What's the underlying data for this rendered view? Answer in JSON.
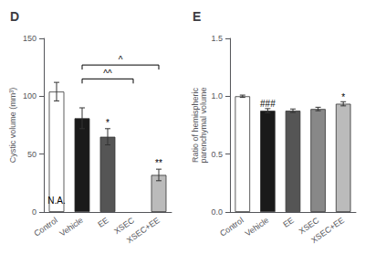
{
  "chart_data": [
    {
      "type": "bar",
      "title": "D",
      "categories": [
        "Control",
        "Vehicle",
        "EE",
        "XSEC",
        "XSEC+EE"
      ],
      "values": [
        104,
        81,
        65,
        null,
        32
      ],
      "errors": [
        8,
        9,
        7,
        null,
        5
      ],
      "colors": [
        "white",
        "#1a1a1a",
        "#555555",
        "#888888",
        "#bbbbbb"
      ],
      "ylabel": "Cystic volume (mm³)",
      "ylim": [
        0,
        150
      ],
      "yticks": [
        0,
        50,
        100,
        150
      ],
      "grid": false,
      "annotations": [
        {
          "x": "Control",
          "y": 6,
          "text": "N.A."
        },
        {
          "x": "EE",
          "y": 73,
          "text": "*"
        },
        {
          "x": "XSEC+EE",
          "y": 38,
          "text": "**"
        }
      ],
      "brackets": [
        {
          "from": "Vehicle",
          "to": "XSEC",
          "y": 115,
          "label": "^^"
        },
        {
          "from": "Vehicle",
          "to": "XSEC+EE",
          "y": 127,
          "label": "^"
        }
      ]
    },
    {
      "type": "bar",
      "title": "E",
      "categories": [
        "Control",
        "Vehicle",
        "EE",
        "XSEC",
        "XSEC+EE"
      ],
      "values": [
        1.0,
        0.875,
        0.875,
        0.89,
        0.935
      ],
      "errors": [
        0.01,
        0.018,
        0.015,
        0.015,
        0.018
      ],
      "colors": [
        "white",
        "#1a1a1a",
        "#555555",
        "#888888",
        "#bbbbbb"
      ],
      "ylabel": "Ratio of hemispheric\nparenchymal volume",
      "ylim": [
        0.0,
        1.5
      ],
      "yticks": [
        {
          "value": 0,
          "label": "0.0"
        },
        0.5,
        {
          "value": 1,
          "label": "1.0"
        },
        1.5
      ],
      "grid": false,
      "annotations": [
        {
          "x": "Vehicle",
          "y": 0.9,
          "text": "###"
        },
        {
          "x": "XSEC+EE",
          "y": 0.955,
          "text": "*"
        }
      ]
    }
  ]
}
